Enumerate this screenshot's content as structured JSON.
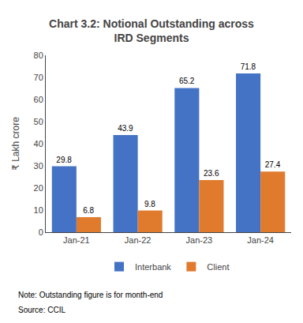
{
  "chart_data": {
    "type": "bar",
    "title": "Chart 3.2: Notional Outstanding across\nIRD Segments",
    "categories": [
      "Jan-21",
      "Jan-22",
      "Jan-23",
      "Jan-24"
    ],
    "series": [
      {
        "name": "Interbank",
        "color": "#4472C4",
        "values": [
          29.8,
          43.9,
          65.2,
          71.8
        ]
      },
      {
        "name": "Client",
        "color": "#E07B2E",
        "values": [
          6.8,
          9.8,
          23.6,
          27.4
        ]
      }
    ],
    "ylabel": "₹ Lakh crore",
    "ylim": [
      0,
      80
    ],
    "yticks": [
      0,
      10,
      20,
      30,
      40,
      50,
      60,
      70,
      80
    ],
    "data_labels": true,
    "grid": false,
    "legend": "bottom",
    "annotations": [
      "Note: Outstanding figure is for month-end",
      "Source: CCIL"
    ]
  }
}
